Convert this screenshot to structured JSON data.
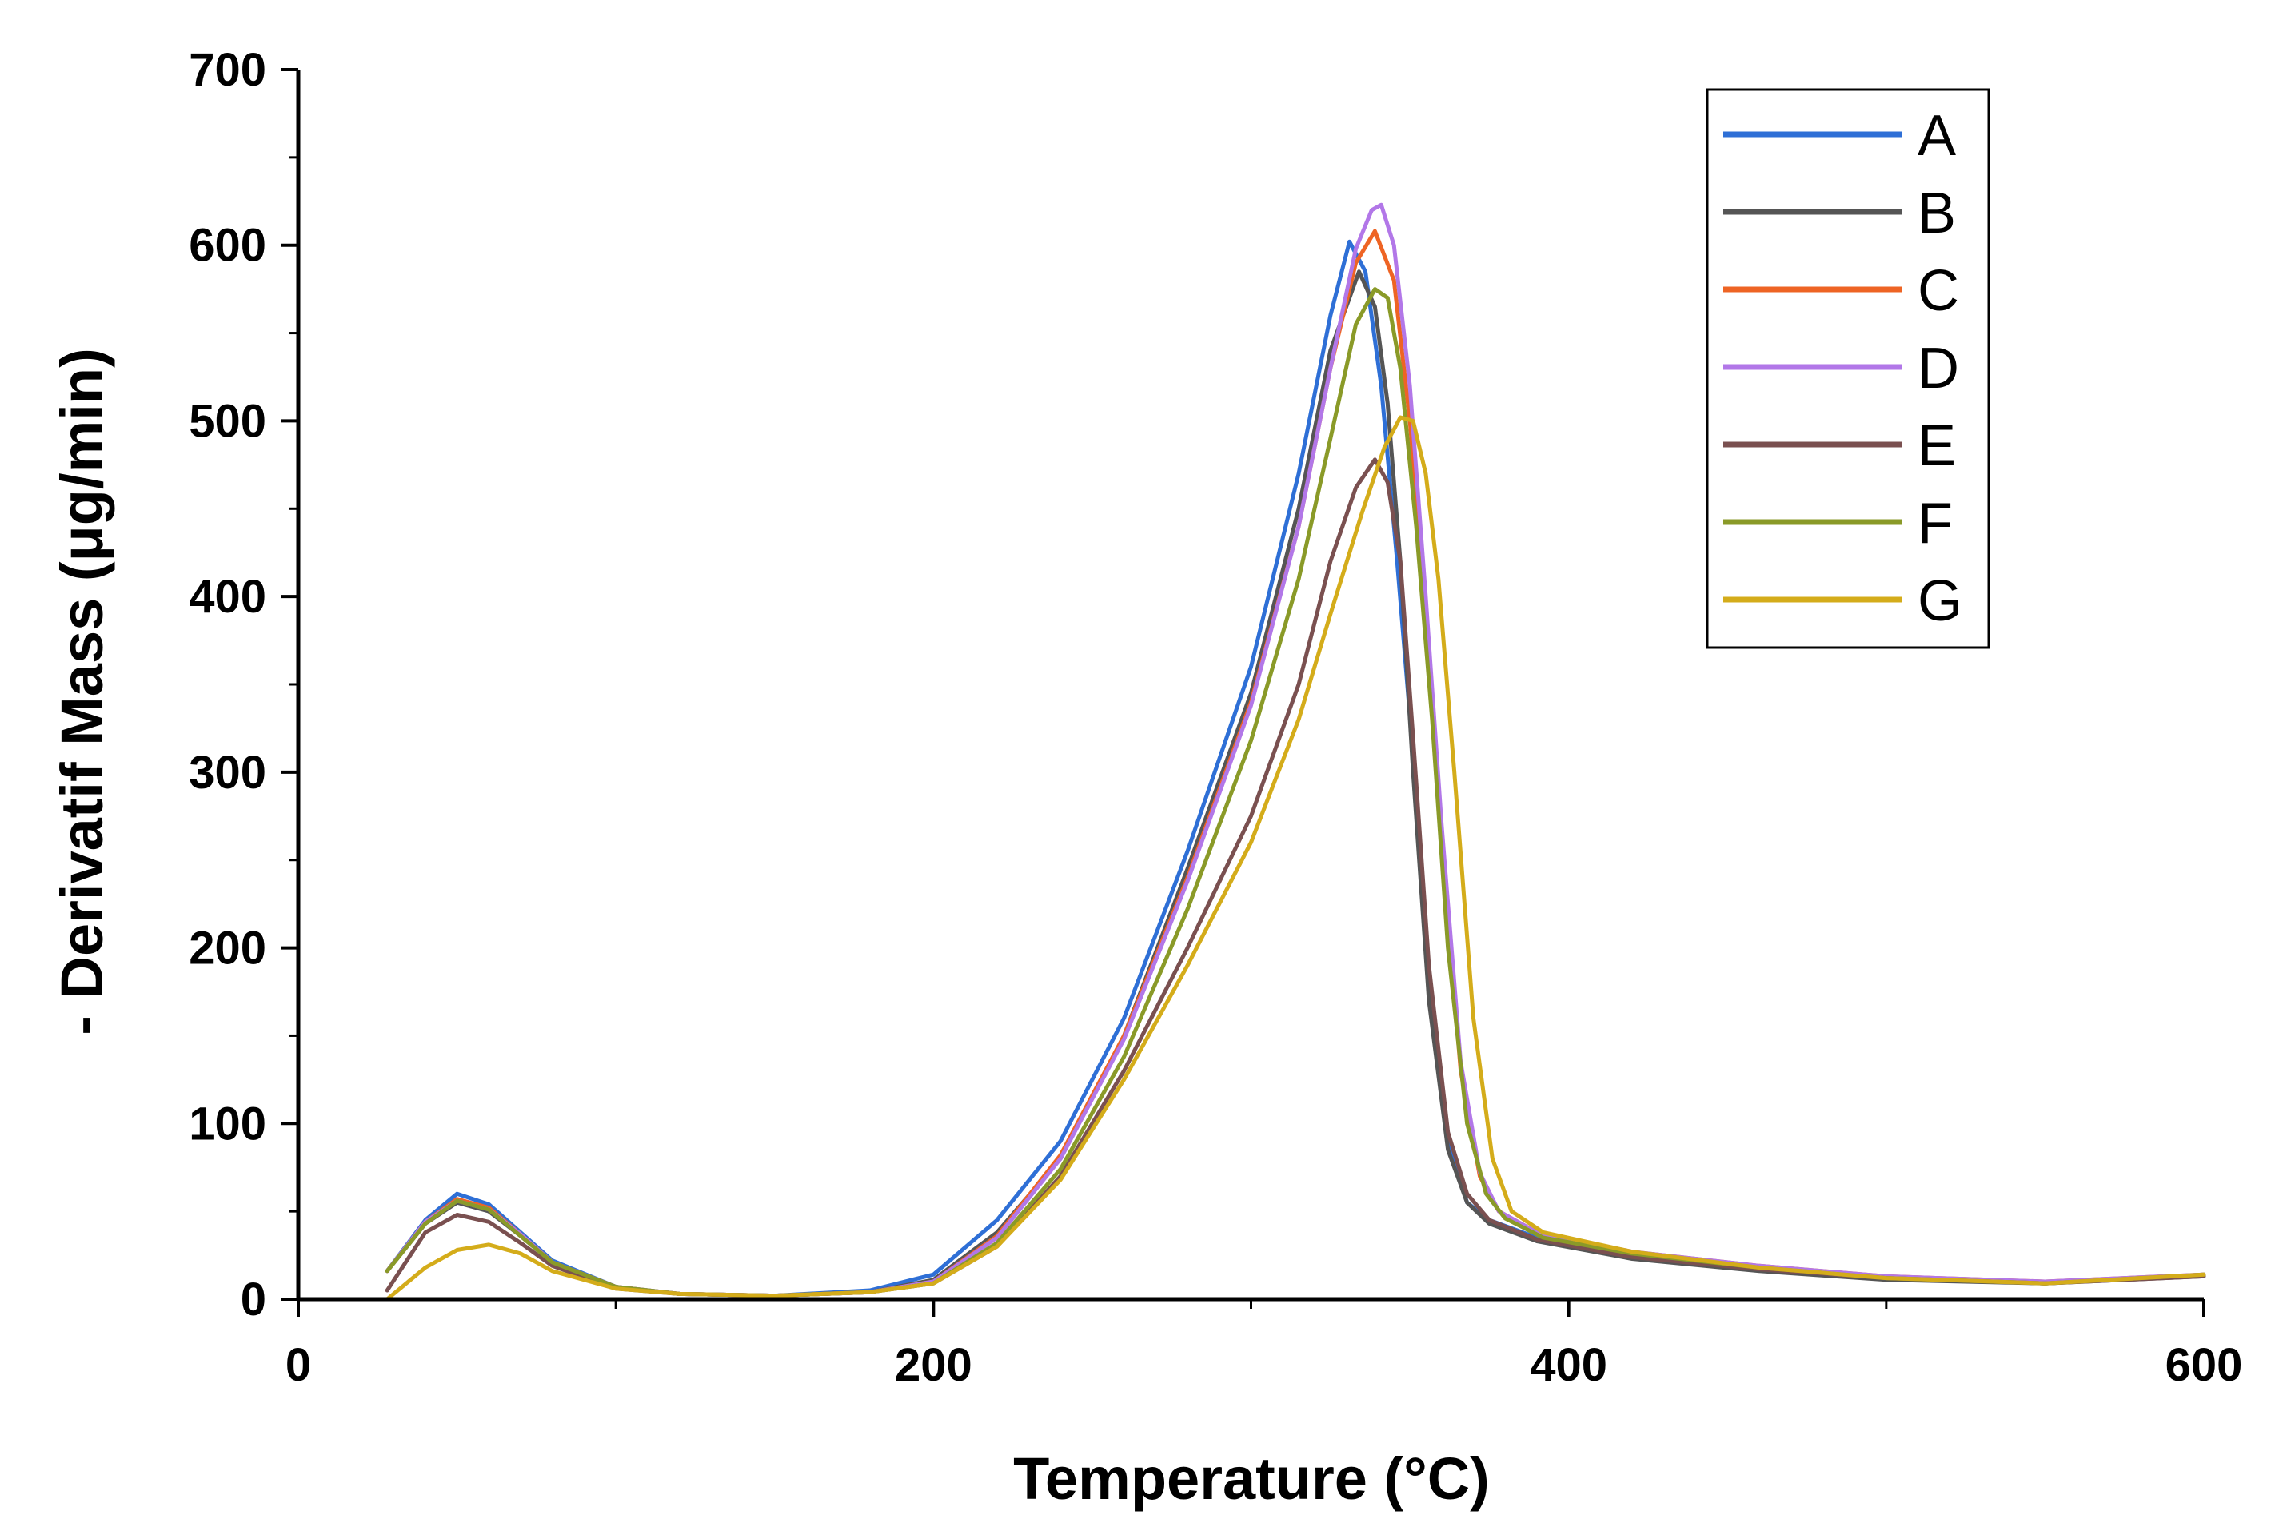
{
  "chart_data": {
    "type": "line",
    "xlabel": "Temperature (°C)",
    "ylabel": "- Derivatif Mass (μg/min)",
    "xlim": [
      0,
      600
    ],
    "ylim": [
      0,
      700
    ],
    "xticks": [
      "0",
      "200",
      "400",
      "600"
    ],
    "yticks": [
      "0",
      "100",
      "200",
      "300",
      "400",
      "500",
      "600",
      "700"
    ],
    "grid": false,
    "legend_position": "top-right",
    "series": [
      {
        "name": "A",
        "color": "#2e6fd6",
        "x": [
          28,
          40,
          50,
          60,
          70,
          80,
          100,
          120,
          150,
          180,
          200,
          220,
          240,
          260,
          280,
          300,
          315,
          325,
          331,
          336,
          341,
          346,
          351,
          356,
          362,
          368,
          375,
          390,
          420,
          460,
          500,
          550,
          600
        ],
        "y": [
          16,
          45,
          60,
          54,
          38,
          22,
          7,
          3,
          2,
          5,
          14,
          45,
          90,
          160,
          255,
          360,
          470,
          560,
          602,
          585,
          520,
          420,
          310,
          180,
          90,
          55,
          45,
          35,
          25,
          18,
          12,
          9,
          14
        ]
      },
      {
        "name": "B",
        "color": "#555555",
        "x": [
          28,
          40,
          50,
          60,
          70,
          80,
          100,
          120,
          150,
          180,
          200,
          220,
          240,
          260,
          280,
          300,
          315,
          325,
          334,
          339,
          343,
          347,
          351,
          356,
          362,
          368,
          375,
          390,
          420,
          460,
          500,
          550,
          600
        ],
        "y": [
          16,
          43,
          55,
          50,
          36,
          21,
          7,
          3,
          2,
          4,
          11,
          38,
          80,
          150,
          245,
          345,
          450,
          540,
          585,
          565,
          510,
          420,
          300,
          170,
          85,
          55,
          43,
          33,
          23,
          16,
          11,
          9,
          13
        ]
      },
      {
        "name": "C",
        "color": "#ee6424",
        "x": [
          28,
          40,
          50,
          60,
          70,
          80,
          100,
          120,
          150,
          180,
          200,
          220,
          240,
          260,
          280,
          300,
          315,
          325,
          333,
          339,
          345,
          350,
          355,
          360,
          366,
          372,
          378,
          390,
          420,
          460,
          500,
          550,
          600
        ],
        "y": [
          16,
          44,
          57,
          52,
          37,
          21,
          7,
          3,
          2,
          4,
          10,
          36,
          82,
          150,
          240,
          340,
          440,
          530,
          590,
          608,
          580,
          500,
          390,
          260,
          130,
          70,
          50,
          38,
          27,
          19,
          13,
          10,
          14
        ]
      },
      {
        "name": "D",
        "color": "#b277e8",
        "x": [
          28,
          40,
          50,
          60,
          70,
          80,
          100,
          120,
          150,
          180,
          200,
          220,
          240,
          260,
          280,
          300,
          315,
          325,
          333,
          338,
          341,
          345,
          350,
          355,
          360,
          366,
          372,
          378,
          390,
          420,
          460,
          500,
          550,
          600
        ],
        "y": [
          16,
          44,
          56,
          51,
          37,
          21,
          7,
          3,
          2,
          4,
          10,
          35,
          80,
          148,
          238,
          338,
          440,
          530,
          598,
          620,
          623,
          600,
          520,
          400,
          270,
          135,
          72,
          50,
          38,
          27,
          19,
          13,
          10,
          14
        ]
      },
      {
        "name": "E",
        "color": "#7a5050",
        "x": [
          28,
          40,
          50,
          60,
          70,
          80,
          100,
          120,
          150,
          180,
          200,
          220,
          240,
          260,
          280,
          300,
          315,
          325,
          333,
          339,
          343,
          347,
          351,
          356,
          362,
          368,
          375,
          390,
          420,
          460,
          500,
          550,
          600
        ],
        "y": [
          5,
          38,
          48,
          44,
          32,
          19,
          6,
          3,
          2,
          4,
          9,
          30,
          70,
          130,
          200,
          275,
          350,
          420,
          462,
          478,
          465,
          420,
          320,
          190,
          95,
          60,
          45,
          34,
          24,
          17,
          12,
          9,
          13
        ]
      },
      {
        "name": "F",
        "color": "#8a9a28",
        "x": [
          28,
          40,
          50,
          60,
          70,
          80,
          100,
          120,
          150,
          180,
          200,
          220,
          240,
          260,
          280,
          300,
          315,
          325,
          333,
          339,
          343,
          347,
          352,
          357,
          362,
          368,
          374,
          380,
          392,
          420,
          460,
          500,
          550,
          600
        ],
        "y": [
          16,
          43,
          56,
          51,
          36,
          21,
          7,
          3,
          2,
          4,
          9,
          32,
          74,
          138,
          222,
          318,
          410,
          490,
          555,
          575,
          570,
          530,
          440,
          330,
          200,
          100,
          60,
          46,
          35,
          26,
          18,
          12,
          9,
          14
        ]
      },
      {
        "name": "G",
        "color": "#d4ac1a",
        "x": [
          28,
          40,
          50,
          60,
          70,
          80,
          100,
          120,
          150,
          180,
          200,
          220,
          240,
          260,
          280,
          300,
          315,
          325,
          335,
          342,
          347,
          351,
          355,
          359,
          364,
          370,
          376,
          382,
          392,
          420,
          460,
          500,
          550,
          600
        ],
        "y": [
          0,
          18,
          28,
          31,
          26,
          16,
          6,
          3,
          2,
          4,
          9,
          30,
          68,
          125,
          190,
          260,
          330,
          390,
          448,
          485,
          502,
          500,
          470,
          410,
          300,
          160,
          80,
          50,
          38,
          27,
          18,
          12,
          9,
          14
        ]
      }
    ]
  }
}
